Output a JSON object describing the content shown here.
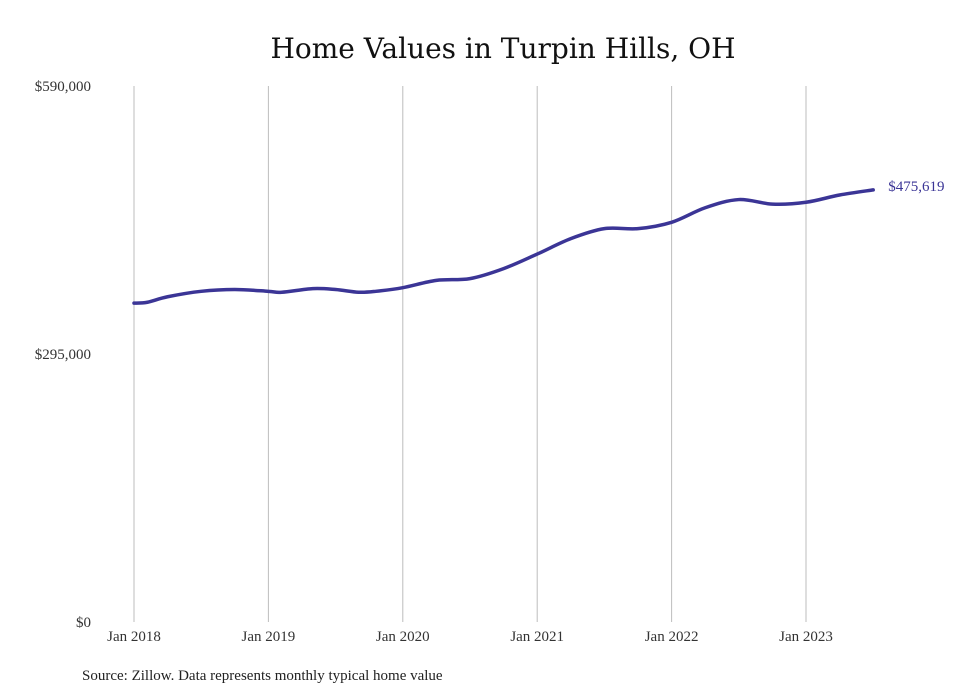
{
  "chart_data": {
    "type": "line",
    "title": "Home Values in Turpin Hills, OH",
    "xlabel": "",
    "ylabel": "",
    "ylim": [
      0,
      590000
    ],
    "y_ticks": [
      {
        "value": 0,
        "label": "$0"
      },
      {
        "value": 295000,
        "label": "$295,000"
      },
      {
        "value": 590000,
        "label": "$590,000"
      }
    ],
    "x_ticks": [
      "Jan 2018",
      "Jan 2019",
      "Jan 2020",
      "Jan 2021",
      "Jan 2022",
      "Jan 2023"
    ],
    "x_tick_years": [
      2018,
      2019,
      2020,
      2021,
      2022,
      2023
    ],
    "x_range": [
      2018.0,
      2023.5
    ],
    "grid": "vertical",
    "end_label": "$475,619",
    "series": [
      {
        "color": "#3b3596",
        "points": [
          {
            "x": 2018.0,
            "y": 351000
          },
          {
            "x": 2018.1,
            "y": 352000
          },
          {
            "x": 2018.25,
            "y": 358000
          },
          {
            "x": 2018.5,
            "y": 364000
          },
          {
            "x": 2018.75,
            "y": 366000
          },
          {
            "x": 2019.0,
            "y": 364000
          },
          {
            "x": 2019.1,
            "y": 363000
          },
          {
            "x": 2019.33,
            "y": 367000
          },
          {
            "x": 2019.5,
            "y": 366000
          },
          {
            "x": 2019.67,
            "y": 363000
          },
          {
            "x": 2019.8,
            "y": 364000
          },
          {
            "x": 2020.0,
            "y": 368000
          },
          {
            "x": 2020.25,
            "y": 376000
          },
          {
            "x": 2020.5,
            "y": 378000
          },
          {
            "x": 2020.75,
            "y": 389000
          },
          {
            "x": 2021.0,
            "y": 405000
          },
          {
            "x": 2021.25,
            "y": 422000
          },
          {
            "x": 2021.5,
            "y": 433000
          },
          {
            "x": 2021.75,
            "y": 433000
          },
          {
            "x": 2022.0,
            "y": 440000
          },
          {
            "x": 2022.25,
            "y": 456000
          },
          {
            "x": 2022.5,
            "y": 465000
          },
          {
            "x": 2022.75,
            "y": 460000
          },
          {
            "x": 2023.0,
            "y": 462000
          },
          {
            "x": 2023.25,
            "y": 470000
          },
          {
            "x": 2023.5,
            "y": 475619
          }
        ]
      }
    ]
  },
  "source_note": "Source: Zillow. Data represents monthly typical home value"
}
